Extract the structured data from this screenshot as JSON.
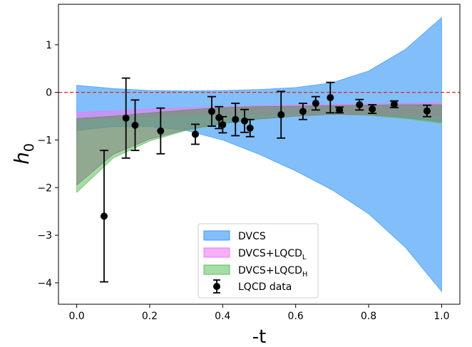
{
  "chart_data": {
    "type": "line",
    "xlabel": "-t",
    "ylabel": {
      "base": "h",
      "sub": "0"
    },
    "xlim": [
      -0.05,
      1.05
    ],
    "ylim": [
      -4.45,
      1.85
    ],
    "xticks": [
      0.0,
      0.2,
      0.4,
      0.6,
      0.8,
      1.0
    ],
    "xtick_labels": [
      "0.0",
      "0.2",
      "0.4",
      "0.6",
      "0.8",
      "1.0"
    ],
    "yticks": [
      1,
      0,
      -1,
      -2,
      -3,
      -4
    ],
    "ytick_labels": [
      "1",
      "0",
      "−1",
      "−2",
      "−3",
      "−4"
    ],
    "reference_line": {
      "y": 0,
      "style": "dashed",
      "color": "#d62728"
    },
    "legend_position": "lower-center",
    "bands": [
      {
        "name": "DVCS",
        "color": "#3f9bf7",
        "opacity": 0.65,
        "x": [
          0.0,
          0.1,
          0.2,
          0.3,
          0.4,
          0.5,
          0.6,
          0.7,
          0.8,
          0.9,
          1.0
        ],
        "upper": [
          0.15,
          0.08,
          0.04,
          0.03,
          0.04,
          0.06,
          0.1,
          0.2,
          0.45,
          0.9,
          1.57
        ],
        "lower": [
          -0.8,
          -0.72,
          -0.72,
          -0.8,
          -1.0,
          -1.3,
          -1.65,
          -2.05,
          -2.55,
          -3.25,
          -4.18
        ]
      },
      {
        "name": "DVCS+LQCD",
        "name_sub": "L",
        "color": "#f07af2",
        "opacity": 0.6,
        "x": [
          0.0,
          0.1,
          0.2,
          0.3,
          0.4,
          0.5,
          0.6,
          0.7,
          0.8,
          0.9,
          1.0
        ],
        "upper": [
          -0.42,
          -0.39,
          -0.35,
          -0.32,
          -0.3,
          -0.28,
          -0.26,
          -0.25,
          -0.24,
          -0.23,
          -0.22
        ],
        "lower": [
          -0.58,
          -0.55,
          -0.52,
          -0.49,
          -0.47,
          -0.46,
          -0.45,
          -0.44,
          -0.45,
          -0.47,
          -0.5
        ]
      },
      {
        "name": "DVCS+LQCD",
        "name_sub": "H",
        "color": "#5cbf5c",
        "opacity": 0.55,
        "x": [
          0.0,
          0.1,
          0.2,
          0.3,
          0.4,
          0.5,
          0.6,
          0.7,
          0.8,
          0.9,
          1.0
        ],
        "upper": [
          -0.55,
          -0.5,
          -0.43,
          -0.37,
          -0.32,
          -0.3,
          -0.29,
          -0.28,
          -0.27,
          -0.26,
          -0.26
        ],
        "lower": [
          -2.1,
          -1.38,
          -1.02,
          -0.8,
          -0.66,
          -0.56,
          -0.5,
          -0.46,
          -0.48,
          -0.55,
          -0.65
        ]
      },
      {
        "name": "overlap",
        "color": "#808080",
        "opacity": 0.55,
        "legend": false,
        "x": [
          0.0,
          0.1,
          0.2,
          0.3,
          0.4,
          0.5,
          0.6,
          0.7,
          0.8,
          0.9,
          1.0
        ],
        "upper": [
          -0.55,
          -0.5,
          -0.43,
          -0.37,
          -0.32,
          -0.3,
          -0.29,
          -0.28,
          -0.27,
          -0.26,
          -0.26
        ],
        "lower": [
          -1.95,
          -1.3,
          -0.98,
          -0.78,
          -0.65,
          -0.56,
          -0.5,
          -0.46,
          -0.47,
          -0.53,
          -0.62
        ]
      }
    ],
    "points": {
      "name": "LQCD data",
      "color": "#000000",
      "data": [
        {
          "x": 0.075,
          "y": -2.6,
          "yerr": 1.38
        },
        {
          "x": 0.135,
          "y": -0.54,
          "yerr": 0.84
        },
        {
          "x": 0.16,
          "y": -0.69,
          "yerr": 0.53
        },
        {
          "x": 0.23,
          "y": -0.81,
          "yerr": 0.48
        },
        {
          "x": 0.325,
          "y": -0.88,
          "yerr": 0.21
        },
        {
          "x": 0.37,
          "y": -0.4,
          "yerr": 0.31
        },
        {
          "x": 0.39,
          "y": -0.53,
          "yerr": 0.23
        },
        {
          "x": 0.4,
          "y": -0.68,
          "yerr": 0.17
        },
        {
          "x": 0.435,
          "y": -0.57,
          "yerr": 0.34
        },
        {
          "x": 0.46,
          "y": -0.6,
          "yerr": 0.24
        },
        {
          "x": 0.475,
          "y": -0.75,
          "yerr": 0.18
        },
        {
          "x": 0.56,
          "y": -0.47,
          "yerr": 0.49
        },
        {
          "x": 0.62,
          "y": -0.4,
          "yerr": 0.17
        },
        {
          "x": 0.655,
          "y": -0.23,
          "yerr": 0.14
        },
        {
          "x": 0.695,
          "y": -0.11,
          "yerr": 0.32
        },
        {
          "x": 0.72,
          "y": -0.37,
          "yerr": 0.06
        },
        {
          "x": 0.775,
          "y": -0.26,
          "yerr": 0.11
        },
        {
          "x": 0.81,
          "y": -0.35,
          "yerr": 0.09
        },
        {
          "x": 0.87,
          "y": -0.25,
          "yerr": 0.07
        },
        {
          "x": 0.96,
          "y": -0.39,
          "yerr": 0.12
        }
      ]
    }
  }
}
